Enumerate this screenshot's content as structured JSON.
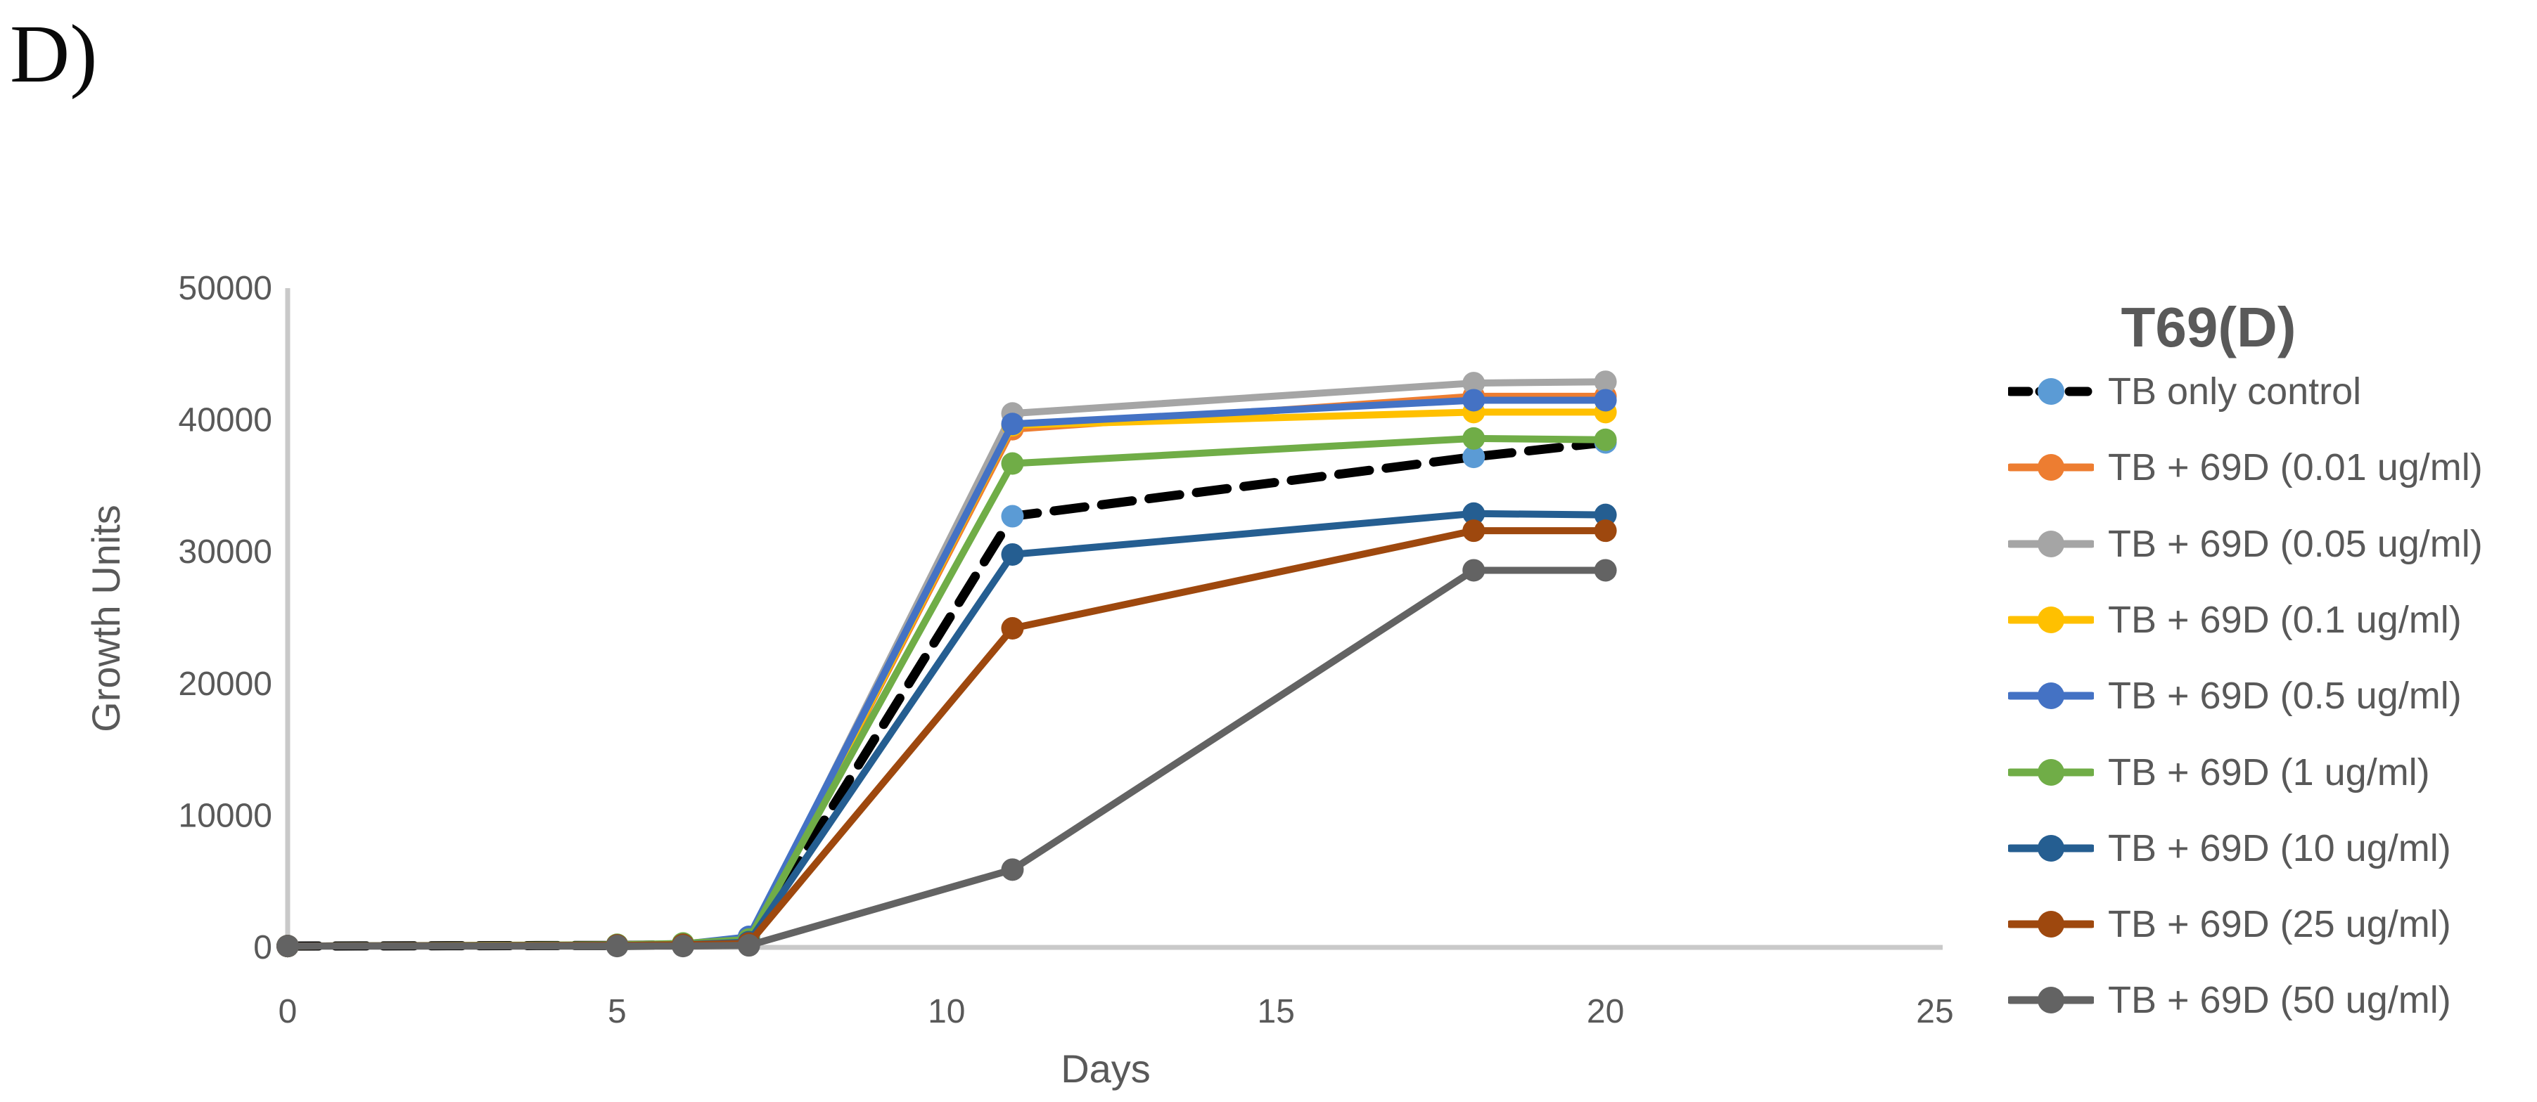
{
  "panel_label": "D)",
  "colors": {
    "text": "#595959",
    "axis_line": "#C9C9C9",
    "background": "#FFFFFF",
    "control_line": "#000000",
    "control_marker": "#5B9BD5"
  },
  "chart_data": {
    "type": "line",
    "title": "T69(D)",
    "xlabel": "Days",
    "ylabel": "Growth Units",
    "xlim": [
      0,
      25
    ],
    "ylim": [
      0,
      50000
    ],
    "xticks": [
      0,
      5,
      10,
      15,
      20,
      25
    ],
    "yticks": [
      0,
      10000,
      20000,
      30000,
      40000,
      50000
    ],
    "grid": false,
    "legend_position": "right",
    "x": [
      0,
      5,
      6,
      7,
      11,
      18,
      20
    ],
    "series": [
      {
        "name": "TB only control",
        "line_color": "#000000",
        "marker_color": "#5B9BD5",
        "dashed": true,
        "values": [
          100,
          150,
          200,
          400,
          32700,
          37200,
          38300
        ]
      },
      {
        "name": "TB + 69D (0.01 ug/ml)",
        "line_color": "#ED7D31",
        "marker_color": "#ED7D31",
        "dashed": false,
        "values": [
          100,
          150,
          200,
          500,
          39300,
          41800,
          41800
        ]
      },
      {
        "name": "TB + 69D (0.05 ug/ml)",
        "line_color": "#A5A5A5",
        "marker_color": "#A5A5A5",
        "dashed": false,
        "values": [
          100,
          150,
          200,
          500,
          40500,
          42800,
          42900
        ]
      },
      {
        "name": "TB + 69D (0.1 ug/ml)",
        "line_color": "#FFC000",
        "marker_color": "#FFC000",
        "dashed": false,
        "values": [
          100,
          150,
          200,
          500,
          39600,
          40600,
          40600
        ]
      },
      {
        "name": "TB + 69D (0.5 ug/ml)",
        "line_color": "#4472C4",
        "marker_color": "#4472C4",
        "dashed": false,
        "values": [
          100,
          150,
          250,
          800,
          39700,
          41500,
          41500
        ]
      },
      {
        "name": "TB + 69D (1 ug/ml)",
        "line_color": "#70AD47",
        "marker_color": "#70AD47",
        "dashed": false,
        "values": [
          100,
          200,
          300,
          600,
          36700,
          38600,
          38500
        ]
      },
      {
        "name": "TB + 69D (10 ug/ml)",
        "line_color": "#255E91",
        "marker_color": "#255E91",
        "dashed": false,
        "values": [
          100,
          150,
          200,
          400,
          29800,
          32900,
          32800
        ]
      },
      {
        "name": "TB + 69D (25 ug/ml)",
        "line_color": "#9E480E",
        "marker_color": "#9E480E",
        "dashed": false,
        "values": [
          100,
          150,
          200,
          300,
          24200,
          31600,
          31600
        ]
      },
      {
        "name": "TB + 69D (50 ug/ml)",
        "line_color": "#636363",
        "marker_color": "#636363",
        "dashed": false,
        "values": [
          100,
          100,
          100,
          150,
          5900,
          28600,
          28600
        ]
      }
    ]
  }
}
